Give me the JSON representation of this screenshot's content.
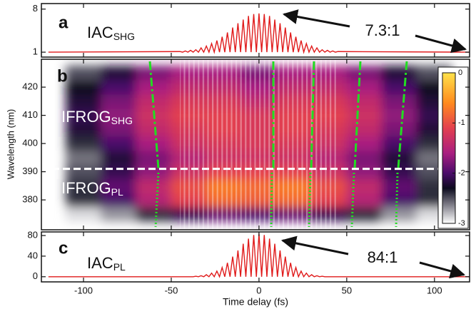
{
  "chart_data": [
    {
      "type": "line",
      "label": "a",
      "color": "#e01b1b",
      "annotations": [
        {
          "text": "IAC",
          "sub": "SHG"
        },
        {
          "text": "7.3:1"
        }
      ],
      "x": [
        -120,
        -45,
        -43.5,
        -42,
        -40.5,
        -39,
        -37.5,
        -36,
        -34.5,
        -33,
        -31.5,
        -30,
        -28.5,
        -27,
        -25.5,
        -24,
        -22.5,
        -21,
        -19.5,
        -18,
        -16.5,
        -15,
        -13.5,
        -12,
        -10.5,
        -9,
        -7.5,
        -6,
        -4.5,
        -3,
        -1.5,
        0,
        1.5,
        3,
        4.5,
        6,
        7.5,
        9,
        10.5,
        12,
        13.5,
        15,
        16.5,
        18,
        19.5,
        21,
        22.5,
        24,
        25.5,
        27,
        28.5,
        30,
        31.5,
        33,
        34.5,
        36,
        37.5,
        39,
        40.5,
        42,
        43.5,
        45,
        120
      ],
      "values": [
        1,
        1.1,
        1,
        1.2,
        1,
        1.3,
        1,
        1.4,
        1,
        1.7,
        1,
        2.0,
        1,
        2.4,
        1,
        2.9,
        1,
        3.5,
        1,
        4.2,
        1,
        5.0,
        1,
        5.7,
        1,
        6.3,
        1,
        6.9,
        1,
        7.2,
        1,
        7.3,
        1,
        7.2,
        1,
        6.9,
        1,
        6.3,
        1,
        5.7,
        1,
        5.0,
        1,
        4.2,
        1,
        3.5,
        1,
        2.9,
        1,
        2.4,
        1,
        2.0,
        1,
        1.7,
        1,
        1.4,
        1,
        1.3,
        1,
        1.2,
        1,
        1.1,
        1
      ],
      "xlim": [
        -124,
        120
      ],
      "ylim": [
        0.2,
        8.9
      ],
      "yticks": [
        1,
        8
      ]
    },
    {
      "type": "heatmap",
      "label": "b",
      "ylabel": "Wavelength (nm)",
      "annotations": [
        {
          "text": "IFROG",
          "sub": "SHG"
        },
        {
          "text": "IFROG",
          "sub": "PL"
        }
      ],
      "x": [
        -100,
        -80,
        -60,
        -40,
        -20,
        0,
        20,
        40,
        60,
        80,
        100
      ],
      "y": [
        375,
        380,
        385,
        390,
        395,
        400,
        405,
        410,
        415,
        420,
        425
      ],
      "z": [
        [
          -2.9,
          -2.7,
          -2.4,
          -2.1,
          -1.9,
          -2.0,
          -1.9,
          -2.1,
          -2.4,
          -2.7,
          -2.9
        ],
        [
          -2.4,
          -2.0,
          -1.5,
          -1.1,
          -0.8,
          -0.9,
          -0.8,
          -1.1,
          -1.5,
          -2.0,
          -2.4
        ],
        [
          -2.4,
          -1.9,
          -1.4,
          -1.0,
          -0.7,
          -0.8,
          -0.7,
          -1.0,
          -1.4,
          -1.9,
          -2.4
        ],
        [
          -2.5,
          -2.1,
          -1.7,
          -1.3,
          -1.1,
          -1.1,
          -1.1,
          -1.3,
          -1.7,
          -2.1,
          -2.5
        ],
        [
          -2.6,
          -2.2,
          -1.8,
          -1.5,
          -1.3,
          -1.3,
          -1.3,
          -1.5,
          -1.8,
          -2.2,
          -2.6
        ],
        [
          -2.4,
          -2.0,
          -1.6,
          -1.3,
          -1.2,
          -1.2,
          -1.2,
          -1.3,
          -1.6,
          -2.0,
          -2.4
        ],
        [
          -2.2,
          -1.8,
          -1.4,
          -1.2,
          -1.1,
          -1.2,
          -1.1,
          -1.2,
          -1.4,
          -1.8,
          -2.2
        ],
        [
          -2.1,
          -1.7,
          -1.3,
          -1.1,
          -1.1,
          -1.2,
          -1.1,
          -1.1,
          -1.3,
          -1.7,
          -2.1
        ],
        [
          -2.2,
          -1.8,
          -1.4,
          -1.2,
          -1.2,
          -1.4,
          -1.2,
          -1.2,
          -1.4,
          -1.8,
          -2.2
        ],
        [
          -2.3,
          -2.0,
          -1.6,
          -1.4,
          -1.4,
          -1.6,
          -1.4,
          -1.4,
          -1.6,
          -2.0,
          -2.3
        ],
        [
          -2.5,
          -2.2,
          -1.8,
          -1.6,
          -1.6,
          -1.8,
          -1.6,
          -1.6,
          -1.8,
          -2.2,
          -2.5
        ]
      ],
      "hline": 391,
      "xlim": [
        -124,
        120
      ],
      "ylim": [
        369.4,
        429.9
      ],
      "yticks": [
        380,
        390,
        400,
        410,
        420
      ],
      "clim": [
        -3,
        0
      ],
      "cticks": [
        0,
        -1,
        -2,
        -3
      ],
      "colormap": [
        {
          "value": 0,
          "color": "#ffe24a"
        },
        {
          "value": -0.6,
          "color": "#ff8a1e"
        },
        {
          "value": -1.1,
          "color": "#e3404f"
        },
        {
          "value": -1.6,
          "color": "#a91f80"
        },
        {
          "value": -2.0,
          "color": "#4a0c6a"
        },
        {
          "value": -2.3,
          "color": "#0c0a1e"
        },
        {
          "value": -3,
          "color": "#ffffff"
        }
      ]
    },
    {
      "type": "line",
      "label": "c",
      "color": "#e01b1b",
      "xlabel": "Time delay (fs)",
      "annotations": [
        {
          "text": "IAC",
          "sub": "PL"
        },
        {
          "text": "84:1"
        }
      ],
      "x": [
        -120,
        -45,
        -43.5,
        -42,
        -40.5,
        -39,
        -37.5,
        -36,
        -34.5,
        -33,
        -31.5,
        -30,
        -28.5,
        -27,
        -25.5,
        -24,
        -22.5,
        -21,
        -19.5,
        -18,
        -16.5,
        -15,
        -13.5,
        -12,
        -10.5,
        -9,
        -7.5,
        -6,
        -4.5,
        -3,
        -1.5,
        0,
        1.5,
        3,
        4.5,
        6,
        7.5,
        9,
        10.5,
        12,
        13.5,
        15,
        16.5,
        18,
        19.5,
        21,
        22.5,
        24,
        25.5,
        27,
        28.5,
        30,
        31.5,
        33,
        34.5,
        36,
        37.5,
        39,
        40.5,
        42,
        43.5,
        45,
        120
      ],
      "values": [
        0,
        0,
        0,
        0,
        0,
        0,
        0,
        1,
        0,
        2,
        0,
        4,
        0,
        7,
        0,
        11,
        0,
        18,
        0,
        27,
        0,
        39,
        0,
        51,
        0,
        64,
        0,
        74,
        0,
        81,
        0,
        84,
        0,
        81,
        0,
        74,
        0,
        64,
        0,
        51,
        0,
        39,
        0,
        27,
        0,
        18,
        0,
        11,
        0,
        7,
        0,
        4,
        0,
        2,
        0,
        1,
        0,
        0,
        0,
        0,
        0,
        0,
        0
      ],
      "xlim": [
        -124,
        120
      ],
      "xticks": [
        -100,
        -50,
        0,
        50,
        100
      ],
      "ylim": [
        -10,
        87
      ],
      "yticks": [
        0,
        40,
        80
      ]
    }
  ]
}
